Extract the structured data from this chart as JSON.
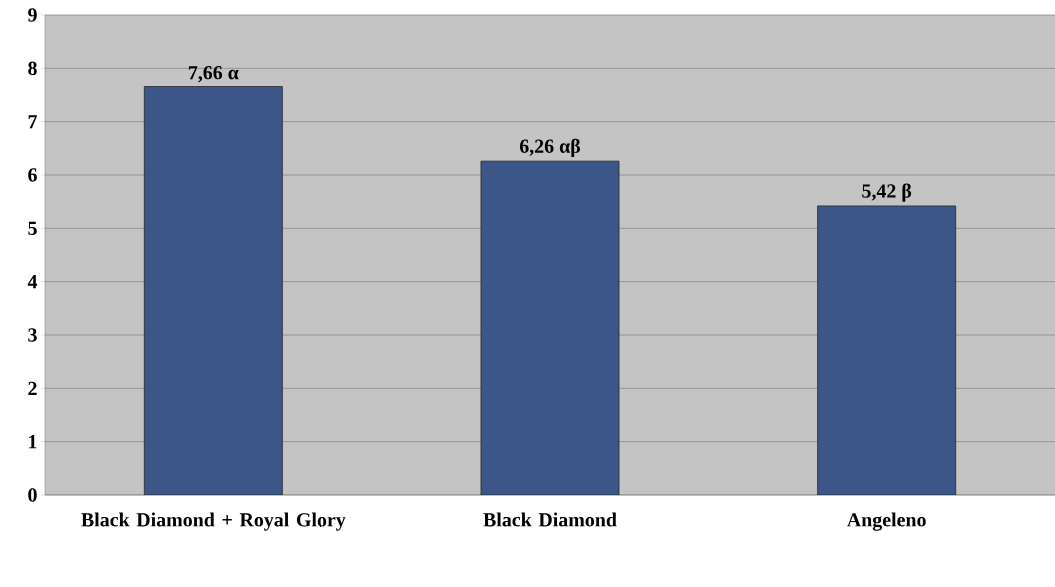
{
  "chart_data": {
    "type": "bar",
    "categories": [
      "Black Diamond + Royal Glory",
      "Black Diamond",
      "Angeleno"
    ],
    "values": [
      7.66,
      6.26,
      5.42
    ],
    "value_labels": [
      "7,66 α",
      "6,26 αβ",
      "5,42 β"
    ],
    "color": "#3b5687",
    "ylim": [
      0,
      9
    ],
    "yticks": [
      0,
      1,
      2,
      3,
      4,
      5,
      6,
      7,
      8,
      9
    ],
    "grid": "y"
  }
}
